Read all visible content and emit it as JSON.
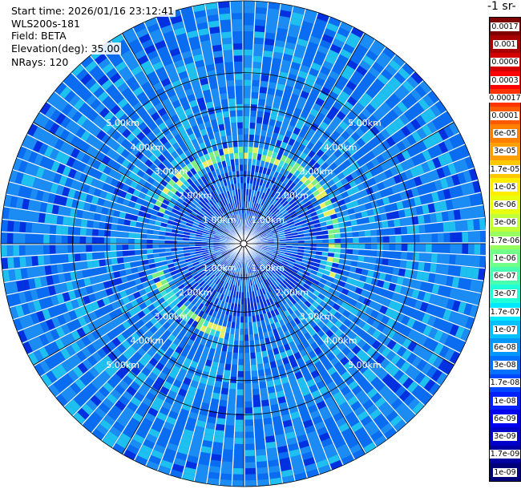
{
  "header": {
    "start_time": "Start time: 2026/01/16 23:12:41",
    "instrument": "WLS200s-181",
    "field": "Field: BETA",
    "elevation": "Elevation(deg): 35.00",
    "nrays": "NRays: 120"
  },
  "colorbar": {
    "unit_label": "-1 sr-",
    "ticks": [
      "0.0017",
      "0.001",
      "0.0006",
      "0.0003",
      "0.00017",
      "0.0001",
      "6e-05",
      "3e-05",
      "1.7e-05",
      "1e-05",
      "6e-06",
      "3e-06",
      "1.7e-06",
      "1e-06",
      "6e-07",
      "3e-07",
      "1.7e-07",
      "1e-07",
      "6e-08",
      "3e-08",
      "1.7e-08",
      "1e-08",
      "6e-09",
      "3e-09",
      "1.7e-09",
      "1e-09"
    ],
    "colors": [
      "#7f0000",
      "#a80000",
      "#d40000",
      "#ff0000",
      "#ff3300",
      "#ff5a00",
      "#ff8000",
      "#ffa000",
      "#ffc800",
      "#ffee00",
      "#e8ff10",
      "#c0ff38",
      "#98ff60",
      "#70ff88",
      "#48ffb0",
      "#20ffd8",
      "#00e8ff",
      "#00c0ff",
      "#0098ff",
      "#0070ff",
      "#0048ff",
      "#0020ff",
      "#0000f0",
      "#0000c8",
      "#0000a0",
      "#000078"
    ]
  },
  "chart_data": {
    "type": "heatmap",
    "plot": "PPI",
    "field": "BETA",
    "elevation_deg": 35.0,
    "n_rays": 120,
    "range_rings_km": [
      1,
      2,
      3,
      4,
      5
    ],
    "range_ring_labels": [
      "1.00km",
      "2.00km",
      "3.00km",
      "4.00km",
      "5.00km"
    ],
    "max_range_km": 7.1,
    "color_scale": "log",
    "color_range": [
      1e-09,
      0.0017
    ],
    "typical_background": 3e-08,
    "enhanced_arc": {
      "range_km": [
        2.4,
        2.7
      ],
      "value_approx": 1.7e-06
    }
  }
}
